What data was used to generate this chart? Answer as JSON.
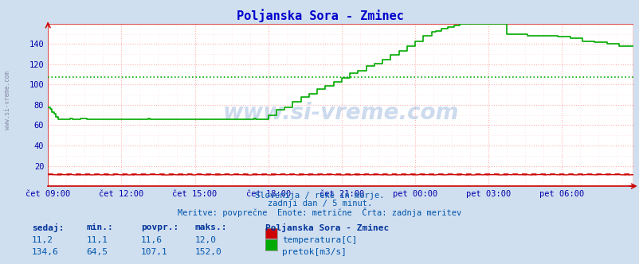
{
  "title": "Poljanska Sora - Zminec",
  "bg_color": "#d0dff0",
  "plot_bg_color": "#ffffff",
  "grid_color_major": "#ffb0b0",
  "grid_color_minor": "#ffe0e0",
  "xlabel_color": "#0000aa",
  "ylabel_color": "#0000aa",
  "title_color": "#0000cc",
  "text_color": "#0055aa",
  "watermark": "www.si-vreme.com",
  "footnote1": "Slovenija / reke in morje.",
  "footnote2": "zadnji dan / 5 minut.",
  "footnote3": "Meritve: povprečne  Enote: metrične  Črta: zadnja meritev",
  "xticklabels": [
    "čet 09:00",
    "čet 12:00",
    "čet 15:00",
    "čet 18:00",
    "čet 21:00",
    "pet 00:00",
    "pet 03:00",
    "pet 06:00"
  ],
  "xtick_positions": [
    0,
    36,
    72,
    108,
    144,
    180,
    216,
    252
  ],
  "ylim": [
    0,
    160
  ],
  "yticks": [
    20,
    40,
    60,
    80,
    100,
    120,
    140
  ],
  "n_points": 288,
  "temp_color": "#cc0000",
  "flow_color": "#00aa00",
  "temp_sedaj": "11,2",
  "temp_min": "11,1",
  "temp_povpr": "11,6",
  "temp_maks": "12,0",
  "flow_sedaj": "134,6",
  "flow_min": "64,5",
  "flow_povpr": "107,1",
  "flow_maks": "152,0",
  "flow_avg_val": 107.1,
  "temp_avg_val": 11.6,
  "legend_title": "Poljanska Sora - Zminec",
  "legend_temp": "temperatura[C]",
  "legend_flow": "pretok[m3/s]",
  "table_headers": [
    "sedaj:",
    "min.:",
    "povpr.:",
    "maks.:"
  ],
  "sidebar_text": "www.si-vreme.com"
}
